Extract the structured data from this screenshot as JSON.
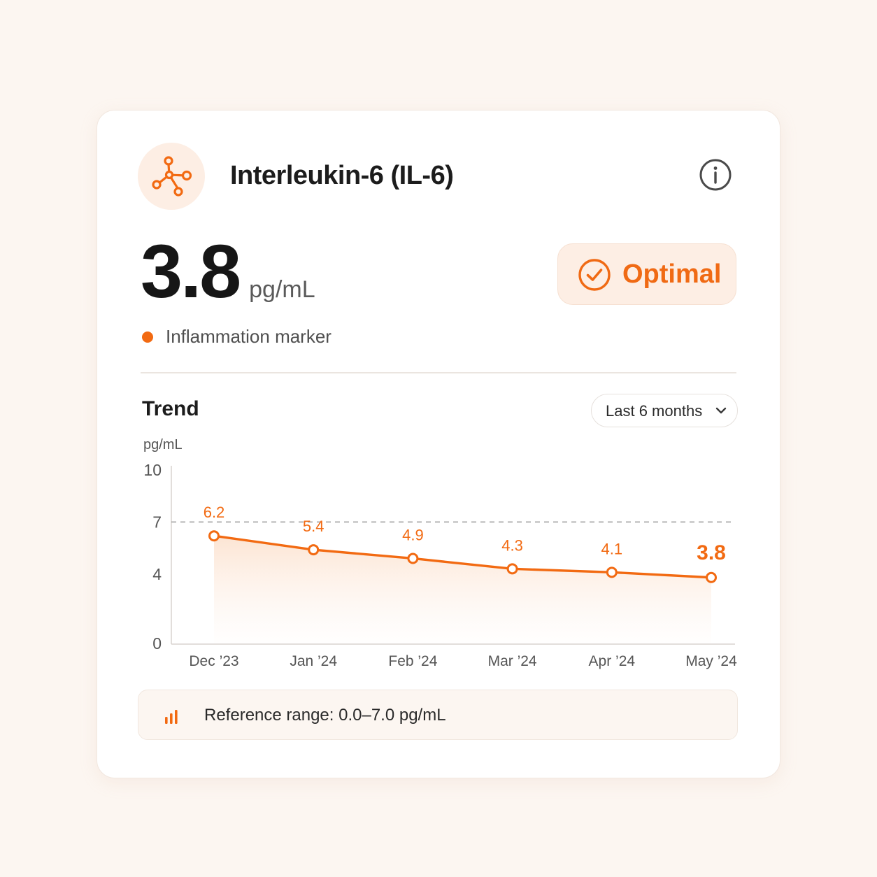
{
  "header": {
    "title": "Interleukin-6 (IL-6)",
    "icon": "molecule-icon",
    "info_icon": "info-icon"
  },
  "measurement": {
    "value": "3.8",
    "unit": "pg/mL",
    "status": "Optimal",
    "status_icon": "check-circle-icon",
    "category": "Inflammation marker"
  },
  "colors": {
    "accent": "#f26a12",
    "accent_soft": "#fdeee4",
    "text": "#1c1c1c",
    "muted": "#5a5a5a"
  },
  "trend": {
    "title": "Trend",
    "range_select": "Last 6 months",
    "range_icon": "chevron-down-icon"
  },
  "chart_data": {
    "type": "line",
    "ylabel": "pg/mL",
    "x": [
      "Dec ’23",
      "Jan ’24",
      "Feb ’24",
      "Mar ’24",
      "Apr ’24",
      "May ’24"
    ],
    "series": [
      {
        "values": [
          6.2,
          5.4,
          4.9,
          4.3,
          4.1,
          3.8
        ]
      }
    ],
    "point_labels": [
      "6.2",
      "5.4",
      "4.9",
      "4.3",
      "4.1",
      "3.8"
    ],
    "y_ticks": [
      0,
      4,
      7,
      10
    ],
    "ylim": [
      0,
      10
    ],
    "reference_line": 7,
    "grid": false,
    "area_fill": true
  },
  "reference": {
    "icon": "bar-chart-icon",
    "label": "Reference range: 0.0–7.0 pg/mL"
  }
}
